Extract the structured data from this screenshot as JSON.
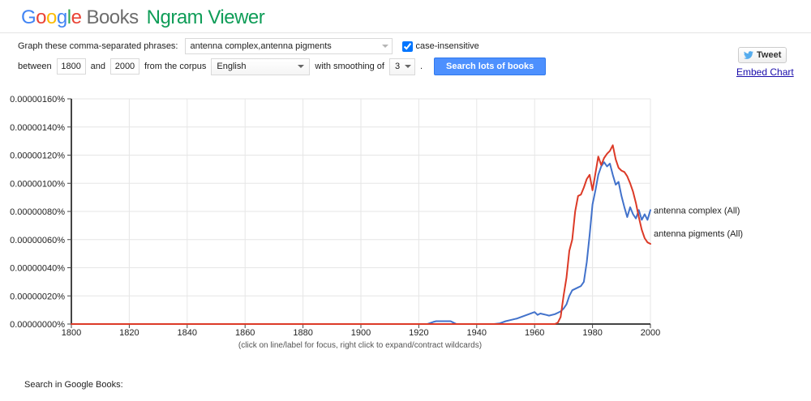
{
  "header": {
    "logo_letters": [
      {
        "ch": "G",
        "color": "#4285F4"
      },
      {
        "ch": "o",
        "color": "#EA4335"
      },
      {
        "ch": "o",
        "color": "#FBBC05"
      },
      {
        "ch": "g",
        "color": "#4285F4"
      },
      {
        "ch": "l",
        "color": "#34A853"
      },
      {
        "ch": "e",
        "color": "#EA4335"
      }
    ],
    "logo_books": "Books",
    "logo_product": "Ngram Viewer",
    "product_color": "#0f9d58"
  },
  "query_form": {
    "phrases_label": "Graph these comma-separated phrases:",
    "phrases_value": "antenna complex,antenna pigments",
    "case_insensitive_label": "case-insensitive",
    "case_insensitive_checked": true,
    "between_label": "between",
    "year_start": "1800",
    "and_label": "and",
    "year_end": "2000",
    "corpus_label": "from the corpus",
    "corpus_value": "English",
    "smoothing_label": "with smoothing of",
    "smoothing_value": "3",
    "period_label": ".",
    "search_button_label": "Search lots of books",
    "search_button_color": "#4d90fe"
  },
  "share": {
    "tweet_label": "Tweet",
    "embed_link_label": "Embed Chart"
  },
  "chart_caption": "(click on line/label for focus, right click to expand/contract wildcards)",
  "footer": {
    "search_in_books_label": "Search in Google Books:"
  },
  "chart_data": {
    "type": "line",
    "title": "",
    "xlabel": "",
    "ylabel": "",
    "grid": true,
    "legend_position": "right of line ends",
    "x_range": [
      1800,
      2000
    ],
    "x_ticks": [
      1800,
      1820,
      1840,
      1860,
      1880,
      1900,
      1920,
      1940,
      1960,
      1980,
      2000
    ],
    "y_tick_labels": [
      "0.00000000%",
      "0.00000020%",
      "0.00000040%",
      "0.00000060%",
      "0.00000080%",
      "0.00000100%",
      "0.00000120%",
      "0.00000140%",
      "0.00000160%"
    ],
    "y_max_units": 160,
    "y_tick_step_units": 20,
    "units_note": "values in percent x 1e-8 (e.g. 130 = 0.00000130%)",
    "axis_color": "#444444",
    "grid_color": "#e6e6e6",
    "series": [
      {
        "name": "antenna complex (All)",
        "color": "#4272cb",
        "points": [
          [
            1800,
            0
          ],
          [
            1923,
            0
          ],
          [
            1925,
            1.5
          ],
          [
            1926,
            2
          ],
          [
            1931,
            2
          ],
          [
            1932,
            1
          ],
          [
            1933,
            0
          ],
          [
            1946,
            0
          ],
          [
            1948,
            0.5
          ],
          [
            1950,
            2
          ],
          [
            1952,
            3
          ],
          [
            1954,
            4
          ],
          [
            1956,
            5.5
          ],
          [
            1958,
            7
          ],
          [
            1960,
            8.5
          ],
          [
            1961,
            6.5
          ],
          [
            1962,
            7.5
          ],
          [
            1964,
            6.5
          ],
          [
            1965,
            6
          ],
          [
            1967,
            7
          ],
          [
            1968,
            8
          ],
          [
            1969,
            9
          ],
          [
            1970,
            11
          ],
          [
            1971,
            14
          ],
          [
            1972,
            20
          ],
          [
            1973,
            24
          ],
          [
            1975,
            26
          ],
          [
            1976,
            27
          ],
          [
            1977,
            30
          ],
          [
            1978,
            44
          ],
          [
            1979,
            63
          ],
          [
            1980,
            85
          ],
          [
            1981,
            95
          ],
          [
            1982,
            106
          ],
          [
            1983,
            112
          ],
          [
            1984,
            115
          ],
          [
            1985,
            112
          ],
          [
            1986,
            114
          ],
          [
            1987,
            106
          ],
          [
            1988,
            99
          ],
          [
            1989,
            101
          ],
          [
            1990,
            91
          ],
          [
            1991,
            83
          ],
          [
            1992,
            76
          ],
          [
            1993,
            83
          ],
          [
            1994,
            78
          ],
          [
            1995,
            75
          ],
          [
            1996,
            81
          ],
          [
            1997,
            74
          ],
          [
            1998,
            78
          ],
          [
            1999,
            74
          ],
          [
            2000,
            81
          ]
        ]
      },
      {
        "name": "antenna pigments (All)",
        "color": "#dc3a27",
        "points": [
          [
            1800,
            0
          ],
          [
            1967,
            0
          ],
          [
            1968,
            1
          ],
          [
            1969,
            5
          ],
          [
            1970,
            20
          ],
          [
            1971,
            33
          ],
          [
            1972,
            52
          ],
          [
            1973,
            60
          ],
          [
            1974,
            80
          ],
          [
            1975,
            91
          ],
          [
            1976,
            92
          ],
          [
            1977,
            97
          ],
          [
            1978,
            103
          ],
          [
            1979,
            106
          ],
          [
            1980,
            95
          ],
          [
            1981,
            107
          ],
          [
            1982,
            119
          ],
          [
            1983,
            113
          ],
          [
            1984,
            118
          ],
          [
            1985,
            121
          ],
          [
            1986,
            123
          ],
          [
            1987,
            127
          ],
          [
            1988,
            117
          ],
          [
            1989,
            111
          ],
          [
            1990,
            109
          ],
          [
            1991,
            108
          ],
          [
            1992,
            105
          ],
          [
            1993,
            100
          ],
          [
            1994,
            94
          ],
          [
            1995,
            86
          ],
          [
            1996,
            76
          ],
          [
            1997,
            67
          ],
          [
            1998,
            61
          ],
          [
            1999,
            58
          ],
          [
            2000,
            57
          ]
        ]
      }
    ]
  }
}
